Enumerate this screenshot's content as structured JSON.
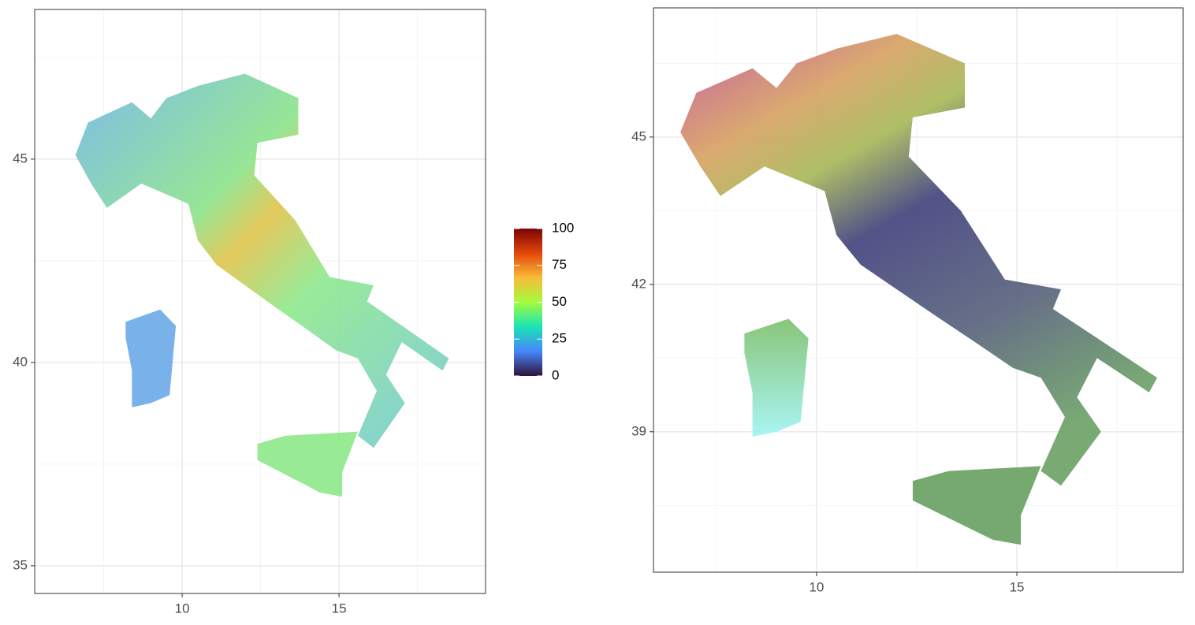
{
  "panels": [
    {
      "xlim": [
        5.3,
        19.67
      ],
      "ylim": [
        34.32,
        48.68
      ],
      "xticks": [
        10,
        15
      ],
      "yticks": [
        35,
        40,
        45
      ]
    },
    {
      "xlim": [
        5.93,
        19.15
      ],
      "ylim": [
        36.14,
        47.63
      ],
      "xticks": [
        10,
        15
      ],
      "yticks": [
        39,
        42,
        45
      ]
    }
  ],
  "colorbar": {
    "lim": [
      0,
      100
    ],
    "ticks": [
      0,
      25,
      50,
      75,
      100
    ],
    "colors": [
      "#30123b",
      "#4686fb",
      "#1ae4b6",
      "#a2fc3c",
      "#fabb39",
      "#e4460a",
      "#7a0403"
    ]
  }
}
